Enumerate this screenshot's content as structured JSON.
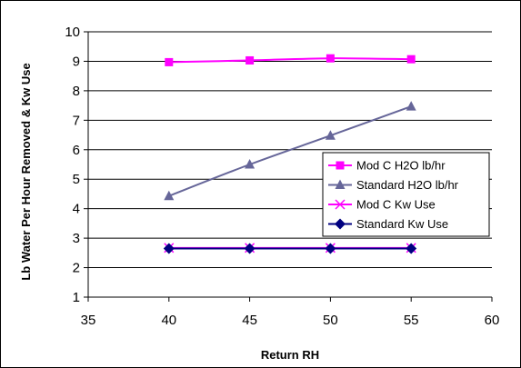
{
  "chart_data": {
    "type": "line",
    "xlabel": "Return RH",
    "ylabel": "Lb Water Per Hour Removed & Kw Use",
    "xlim": [
      35,
      60
    ],
    "ylim": [
      1,
      10
    ],
    "xticks": [
      "35",
      "40",
      "45",
      "50",
      "55",
      "60"
    ],
    "yticks": [
      "1",
      "2",
      "3",
      "4",
      "5",
      "6",
      "7",
      "8",
      "9",
      "10"
    ],
    "grid": "horizontal",
    "legend_position": "right",
    "x": [
      40,
      45,
      50,
      55
    ],
    "series": [
      {
        "name": "Mod C H2O lb/hr",
        "values": [
          8.97,
          9.03,
          9.1,
          9.07
        ],
        "color": "#ff00ff",
        "marker": "square",
        "smooth": true
      },
      {
        "name": "Standard H2O lb/hr",
        "values": [
          4.43,
          5.5,
          6.48,
          7.47
        ],
        "color": "#666699",
        "marker": "triangle",
        "smooth": true
      },
      {
        "name": "Mod C Kw Use",
        "values": [
          2.67,
          2.67,
          2.67,
          2.67
        ],
        "color": "#ff00ff",
        "marker": "x",
        "smooth": false
      },
      {
        "name": "Standard Kw Use",
        "values": [
          2.65,
          2.65,
          2.65,
          2.65
        ],
        "color": "#000080",
        "marker": "diamond",
        "smooth": false
      }
    ]
  }
}
